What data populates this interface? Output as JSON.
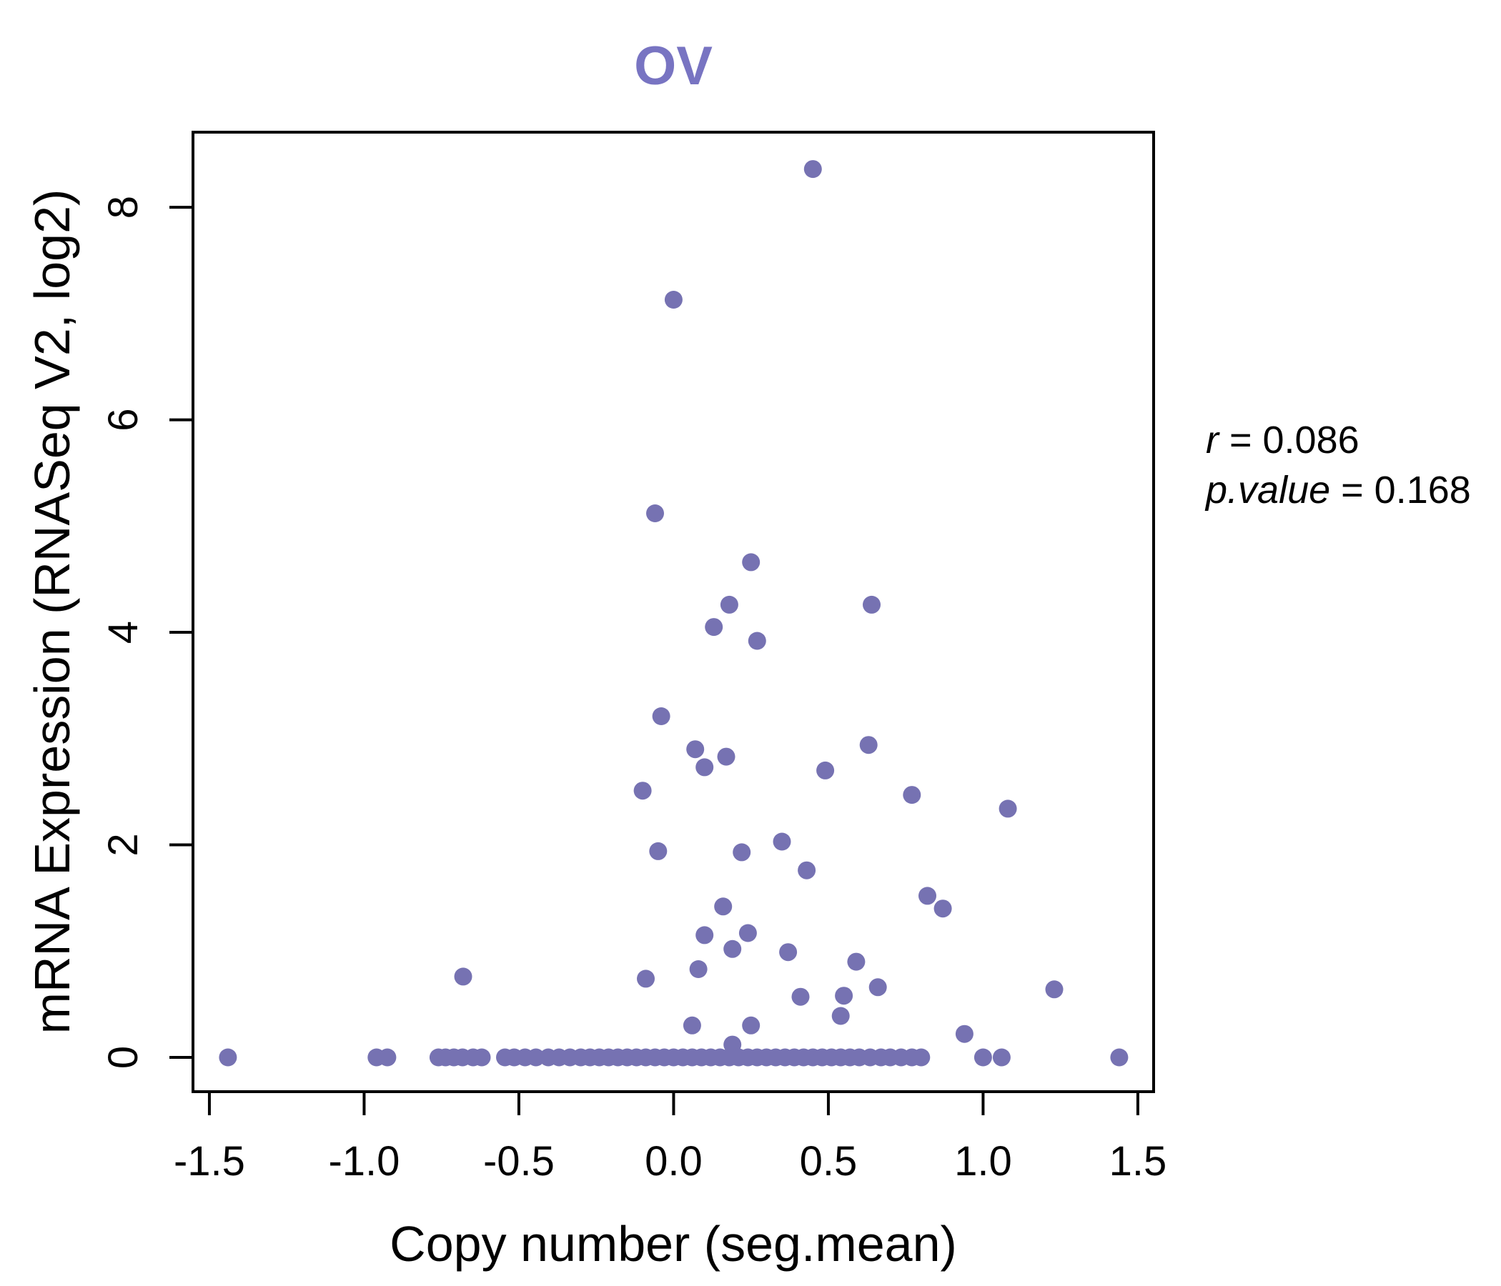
{
  "chart": {
    "title": "OV",
    "xlabel": "Copy number (seg.mean)",
    "ylabel": "mRNA Expression (RNASeq V2, log2)",
    "annotation": {
      "stat1_italic": "r",
      "stat1_rest": " = 0.086",
      "stat2_italic": "p.value",
      "stat2_rest": " = 0.168"
    },
    "colors": {
      "point": "#7672B2",
      "title": "#7874C2",
      "axis": "#000000",
      "background": "#ffffff"
    }
  },
  "chart_data": {
    "type": "scatter",
    "title": "OV",
    "xlabel": "Copy number (seg.mean)",
    "ylabel": "mRNA Expression (RNASeq V2, log2)",
    "r": 0.086,
    "p_value": 0.168,
    "xlim": [
      -1.553,
      1.551
    ],
    "ylim": [
      -0.323,
      8.707
    ],
    "grid": false,
    "legend": "none",
    "x_ticks": [
      {
        "value": -1.5,
        "label": "-1.5"
      },
      {
        "value": -1.0,
        "label": "-1.0"
      },
      {
        "value": -0.5,
        "label": "-0.5"
      },
      {
        "value": 0.0,
        "label": "0.0"
      },
      {
        "value": 0.5,
        "label": "0.5"
      },
      {
        "value": 1.0,
        "label": "1.0"
      },
      {
        "value": 1.5,
        "label": "1.5"
      }
    ],
    "y_ticks": [
      {
        "value": 0,
        "label": "0"
      },
      {
        "value": 2,
        "label": "2"
      },
      {
        "value": 4,
        "label": "4"
      },
      {
        "value": 6,
        "label": "6"
      },
      {
        "value": 8,
        "label": "8"
      }
    ],
    "points": [
      [
        0.45,
        8.36
      ],
      [
        0.0,
        7.13
      ],
      [
        -0.06,
        5.12
      ],
      [
        0.25,
        4.66
      ],
      [
        0.18,
        4.26
      ],
      [
        0.64,
        4.26
      ],
      [
        0.13,
        4.05
      ],
      [
        0.27,
        3.92
      ],
      [
        -0.04,
        3.21
      ],
      [
        0.07,
        2.9
      ],
      [
        0.17,
        2.83
      ],
      [
        0.1,
        2.73
      ],
      [
        0.63,
        2.94
      ],
      [
        0.49,
        2.7
      ],
      [
        -0.1,
        2.51
      ],
      [
        0.77,
        2.47
      ],
      [
        1.08,
        2.34
      ],
      [
        0.35,
        2.03
      ],
      [
        -0.05,
        1.94
      ],
      [
        0.22,
        1.93
      ],
      [
        0.43,
        1.76
      ],
      [
        0.82,
        1.52
      ],
      [
        0.87,
        1.4
      ],
      [
        0.16,
        1.42
      ],
      [
        0.1,
        1.15
      ],
      [
        0.24,
        1.17
      ],
      [
        0.19,
        1.02
      ],
      [
        0.37,
        0.99
      ],
      [
        0.59,
        0.9
      ],
      [
        0.08,
        0.83
      ],
      [
        -0.09,
        0.74
      ],
      [
        -0.68,
        0.76
      ],
      [
        0.66,
        0.66
      ],
      [
        1.23,
        0.64
      ],
      [
        0.41,
        0.57
      ],
      [
        0.55,
        0.58
      ],
      [
        0.54,
        0.39
      ],
      [
        0.06,
        0.3
      ],
      [
        0.25,
        0.3
      ],
      [
        0.94,
        0.22
      ],
      [
        0.19,
        0.12
      ],
      [
        -1.44,
        0
      ],
      [
        -0.96,
        0
      ],
      [
        -0.925,
        0
      ],
      [
        -0.76,
        0
      ],
      [
        -0.737,
        0
      ],
      [
        -0.71,
        0
      ],
      [
        -0.682,
        0
      ],
      [
        -0.648,
        0
      ],
      [
        -0.62,
        0
      ],
      [
        -0.545,
        0
      ],
      [
        -0.515,
        0
      ],
      [
        -0.48,
        0
      ],
      [
        -0.445,
        0
      ],
      [
        -0.405,
        0
      ],
      [
        -0.37,
        0
      ],
      [
        -0.335,
        0
      ],
      [
        -0.3,
        0
      ],
      [
        -0.27,
        0
      ],
      [
        -0.24,
        0
      ],
      [
        -0.21,
        0
      ],
      [
        -0.18,
        0
      ],
      [
        -0.15,
        0
      ],
      [
        -0.12,
        0
      ],
      [
        -0.09,
        0
      ],
      [
        -0.06,
        0
      ],
      [
        -0.03,
        0
      ],
      [
        0.0,
        0
      ],
      [
        0.03,
        0
      ],
      [
        0.06,
        0
      ],
      [
        0.09,
        0
      ],
      [
        0.12,
        0
      ],
      [
        0.15,
        0
      ],
      [
        0.18,
        0
      ],
      [
        0.21,
        0
      ],
      [
        0.24,
        0
      ],
      [
        0.27,
        0
      ],
      [
        0.3,
        0
      ],
      [
        0.33,
        0
      ],
      [
        0.36,
        0
      ],
      [
        0.39,
        0
      ],
      [
        0.42,
        0
      ],
      [
        0.45,
        0
      ],
      [
        0.48,
        0
      ],
      [
        0.51,
        0
      ],
      [
        0.54,
        0
      ],
      [
        0.57,
        0
      ],
      [
        0.6,
        0
      ],
      [
        0.635,
        0
      ],
      [
        0.67,
        0
      ],
      [
        0.7,
        0
      ],
      [
        0.735,
        0
      ],
      [
        0.77,
        0
      ],
      [
        0.8,
        0
      ],
      [
        1.0,
        0
      ],
      [
        1.06,
        0
      ],
      [
        1.44,
        0
      ]
    ]
  }
}
